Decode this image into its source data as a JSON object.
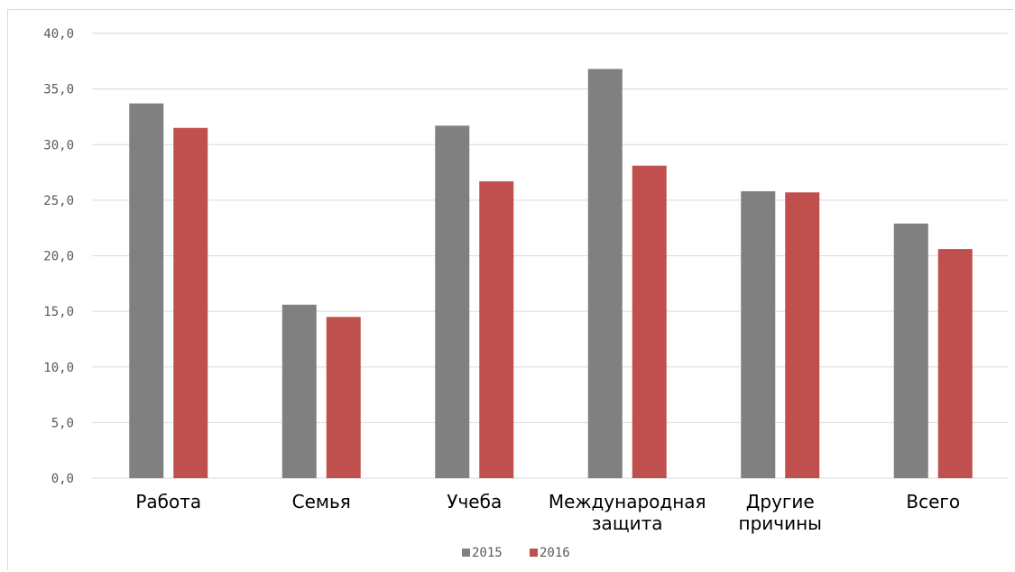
{
  "chart_data": {
    "type": "bar",
    "title": "",
    "xlabel": "",
    "ylabel": "",
    "ylim": [
      0,
      40
    ],
    "yticks": [
      0,
      5,
      10,
      15,
      20,
      25,
      30,
      35,
      40
    ],
    "ytick_labels": [
      "0,0",
      "5,0",
      "10,0",
      "15,0",
      "20,0",
      "25,0",
      "30,0",
      "35,0",
      "40,0"
    ],
    "grid": true,
    "legend_position": "bottom",
    "categories": [
      [
        "Работа"
      ],
      [
        "Семья"
      ],
      [
        "Учеба"
      ],
      [
        "Международная",
        "защита"
      ],
      [
        "Другие",
        "причины"
      ],
      [
        "Всего"
      ]
    ],
    "series": [
      {
        "name": "2015",
        "color": "#808080",
        "values": [
          33.7,
          15.6,
          31.7,
          36.8,
          25.8,
          22.9
        ]
      },
      {
        "name": "2016",
        "color": "#c0504d",
        "values": [
          31.5,
          14.5,
          26.7,
          28.1,
          25.7,
          20.6
        ]
      }
    ]
  }
}
